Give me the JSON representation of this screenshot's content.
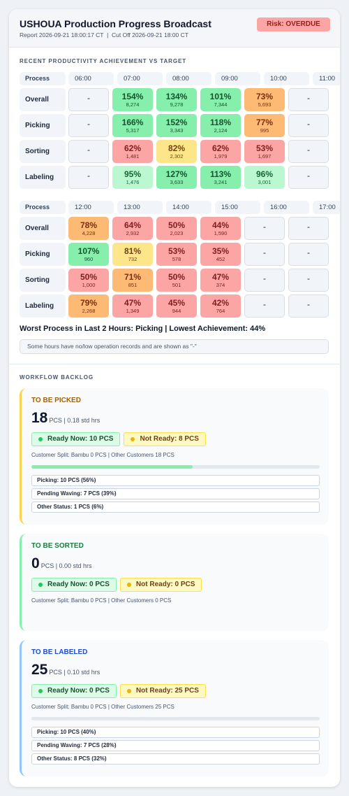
{
  "header": {
    "title": "USHOUA Production Progress Broadcast",
    "subtitle": "Report 2026-09-21 18:00:17 CT  |  Cut Off 2026-09-21 18:00 CT",
    "badge": "Risk: OVERDUE"
  },
  "productivity": {
    "title": "RECENT PRODUCTIVITY ACHIEVEMENT VS TARGET",
    "tables": [
      {
        "headers": [
          "Process",
          "06:00",
          "07:00",
          "08:00",
          "09:00",
          "10:00",
          "11:00"
        ],
        "rows": [
          {
            "process": "Overall",
            "cells": [
              {
                "text": "-"
              },
              {
                "pct": "154%",
                "qty": "8,274",
                "color": "#86efac"
              },
              {
                "pct": "134%",
                "qty": "9,278",
                "color": "#86efac"
              },
              {
                "pct": "101%",
                "qty": "7,344",
                "color": "#86efac"
              },
              {
                "pct": "73%",
                "qty": "5,693",
                "color": "#fdba74"
              },
              {
                "text": "-"
              }
            ]
          },
          {
            "process": "Picking",
            "cells": [
              {
                "text": "-"
              },
              {
                "pct": "166%",
                "qty": "5,317",
                "color": "#86efac"
              },
              {
                "pct": "152%",
                "qty": "3,343",
                "color": "#86efac"
              },
              {
                "pct": "118%",
                "qty": "2,124",
                "color": "#86efac"
              },
              {
                "pct": "77%",
                "qty": "995",
                "color": "#fdba74"
              },
              {
                "text": "-"
              }
            ]
          },
          {
            "process": "Sorting",
            "cells": [
              {
                "text": "-"
              },
              {
                "pct": "62%",
                "qty": "1,481",
                "color": "#fca5a5"
              },
              {
                "pct": "82%",
                "qty": "2,302",
                "color": "#fde68a"
              },
              {
                "pct": "62%",
                "qty": "1,979",
                "color": "#fca5a5"
              },
              {
                "pct": "53%",
                "qty": "1,697",
                "color": "#fca5a5"
              },
              {
                "text": "-"
              }
            ]
          },
          {
            "process": "Labeling",
            "cells": [
              {
                "text": "-"
              },
              {
                "pct": "95%",
                "qty": "1,476",
                "color": "#bbf7d0"
              },
              {
                "pct": "127%",
                "qty": "3,633",
                "color": "#86efac"
              },
              {
                "pct": "113%",
                "qty": "3,241",
                "color": "#86efac"
              },
              {
                "pct": "96%",
                "qty": "3,001",
                "color": "#bbf7d0"
              },
              {
                "text": "-"
              }
            ]
          }
        ]
      },
      {
        "headers": [
          "Process",
          "12:00",
          "13:00",
          "14:00",
          "15:00",
          "16:00",
          "17:00"
        ],
        "rows": [
          {
            "process": "Overall",
            "cells": [
              {
                "pct": "78%",
                "qty": "4,228",
                "color": "#fdba74"
              },
              {
                "pct": "64%",
                "qty": "2,932",
                "color": "#fca5a5"
              },
              {
                "pct": "50%",
                "qty": "2,023",
                "color": "#fca5a5"
              },
              {
                "pct": "44%",
                "qty": "1,590",
                "color": "#fca5a5"
              },
              {
                "text": "-"
              },
              {
                "text": "-"
              }
            ]
          },
          {
            "process": "Picking",
            "cells": [
              {
                "pct": "107%",
                "qty": "960",
                "color": "#86efac"
              },
              {
                "pct": "81%",
                "qty": "732",
                "color": "#fde68a"
              },
              {
                "pct": "53%",
                "qty": "578",
                "color": "#fca5a5"
              },
              {
                "pct": "35%",
                "qty": "452",
                "color": "#fca5a5"
              },
              {
                "text": "-"
              },
              {
                "text": "-"
              }
            ]
          },
          {
            "process": "Sorting",
            "cells": [
              {
                "pct": "50%",
                "qty": "1,000",
                "color": "#fca5a5"
              },
              {
                "pct": "71%",
                "qty": "851",
                "color": "#fdba74"
              },
              {
                "pct": "50%",
                "qty": "501",
                "color": "#fca5a5"
              },
              {
                "pct": "47%",
                "qty": "374",
                "color": "#fca5a5"
              },
              {
                "text": "-"
              },
              {
                "text": "-"
              }
            ]
          },
          {
            "process": "Labeling",
            "cells": [
              {
                "pct": "79%",
                "qty": "2,268",
                "color": "#fdba74"
              },
              {
                "pct": "47%",
                "qty": "1,349",
                "color": "#fca5a5"
              },
              {
                "pct": "45%",
                "qty": "944",
                "color": "#fca5a5"
              },
              {
                "pct": "42%",
                "qty": "764",
                "color": "#fca5a5"
              },
              {
                "text": "-"
              },
              {
                "text": "-"
              }
            ]
          }
        ]
      }
    ],
    "summary": "Worst Process in Last 2 Hours: Picking | Lowest Achievement: 44%",
    "note": "Some hours have no/low operation records and are shown as \"-\""
  },
  "backlog": {
    "title": "WORKFLOW BACKLOG",
    "cards": [
      {
        "title": "TO BE PICKED",
        "accent": "#fcd34d",
        "title_color": "#a16207",
        "count": "18",
        "unit": "PCS | 0.18 std hrs",
        "ready": "Ready Now: 10 PCS",
        "not_ready": "Not Ready: 8 PCS",
        "split": "Customer Split: Bambu 0 PCS | Other Customers 18 PCS",
        "progress": 56,
        "progress_color": "#86efac",
        "breakdown": [
          "Picking: 10 PCS (56%)",
          "Pending Waving: 7 PCS (39%)",
          "Other Status: 1 PCS (6%)"
        ]
      },
      {
        "title": "TO BE SORTED",
        "accent": "#86efac",
        "title_color": "#15803d",
        "count": "0",
        "unit": "PCS | 0.00 std hrs",
        "ready": "Ready Now: 0 PCS",
        "not_ready": "Not Ready: 0 PCS",
        "split": "Customer Split: Bambu 0 PCS | Other Customers 0 PCS"
      },
      {
        "title": "TO BE LABELED",
        "accent": "#93c5fd",
        "title_color": "#1d4ed8",
        "count": "25",
        "unit": "PCS | 0.10 std hrs",
        "ready": "Ready Now: 0 PCS",
        "not_ready": "Not Ready: 25 PCS",
        "split": "Customer Split: Bambu 0 PCS | Other Customers 25 PCS",
        "progress": 0,
        "progress_color": "#86efac",
        "breakdown": [
          "Picking: 10 PCS (40%)",
          "Pending Waving: 7 PCS (28%)",
          "Other Status: 8 PCS (32%)"
        ]
      }
    ]
  }
}
